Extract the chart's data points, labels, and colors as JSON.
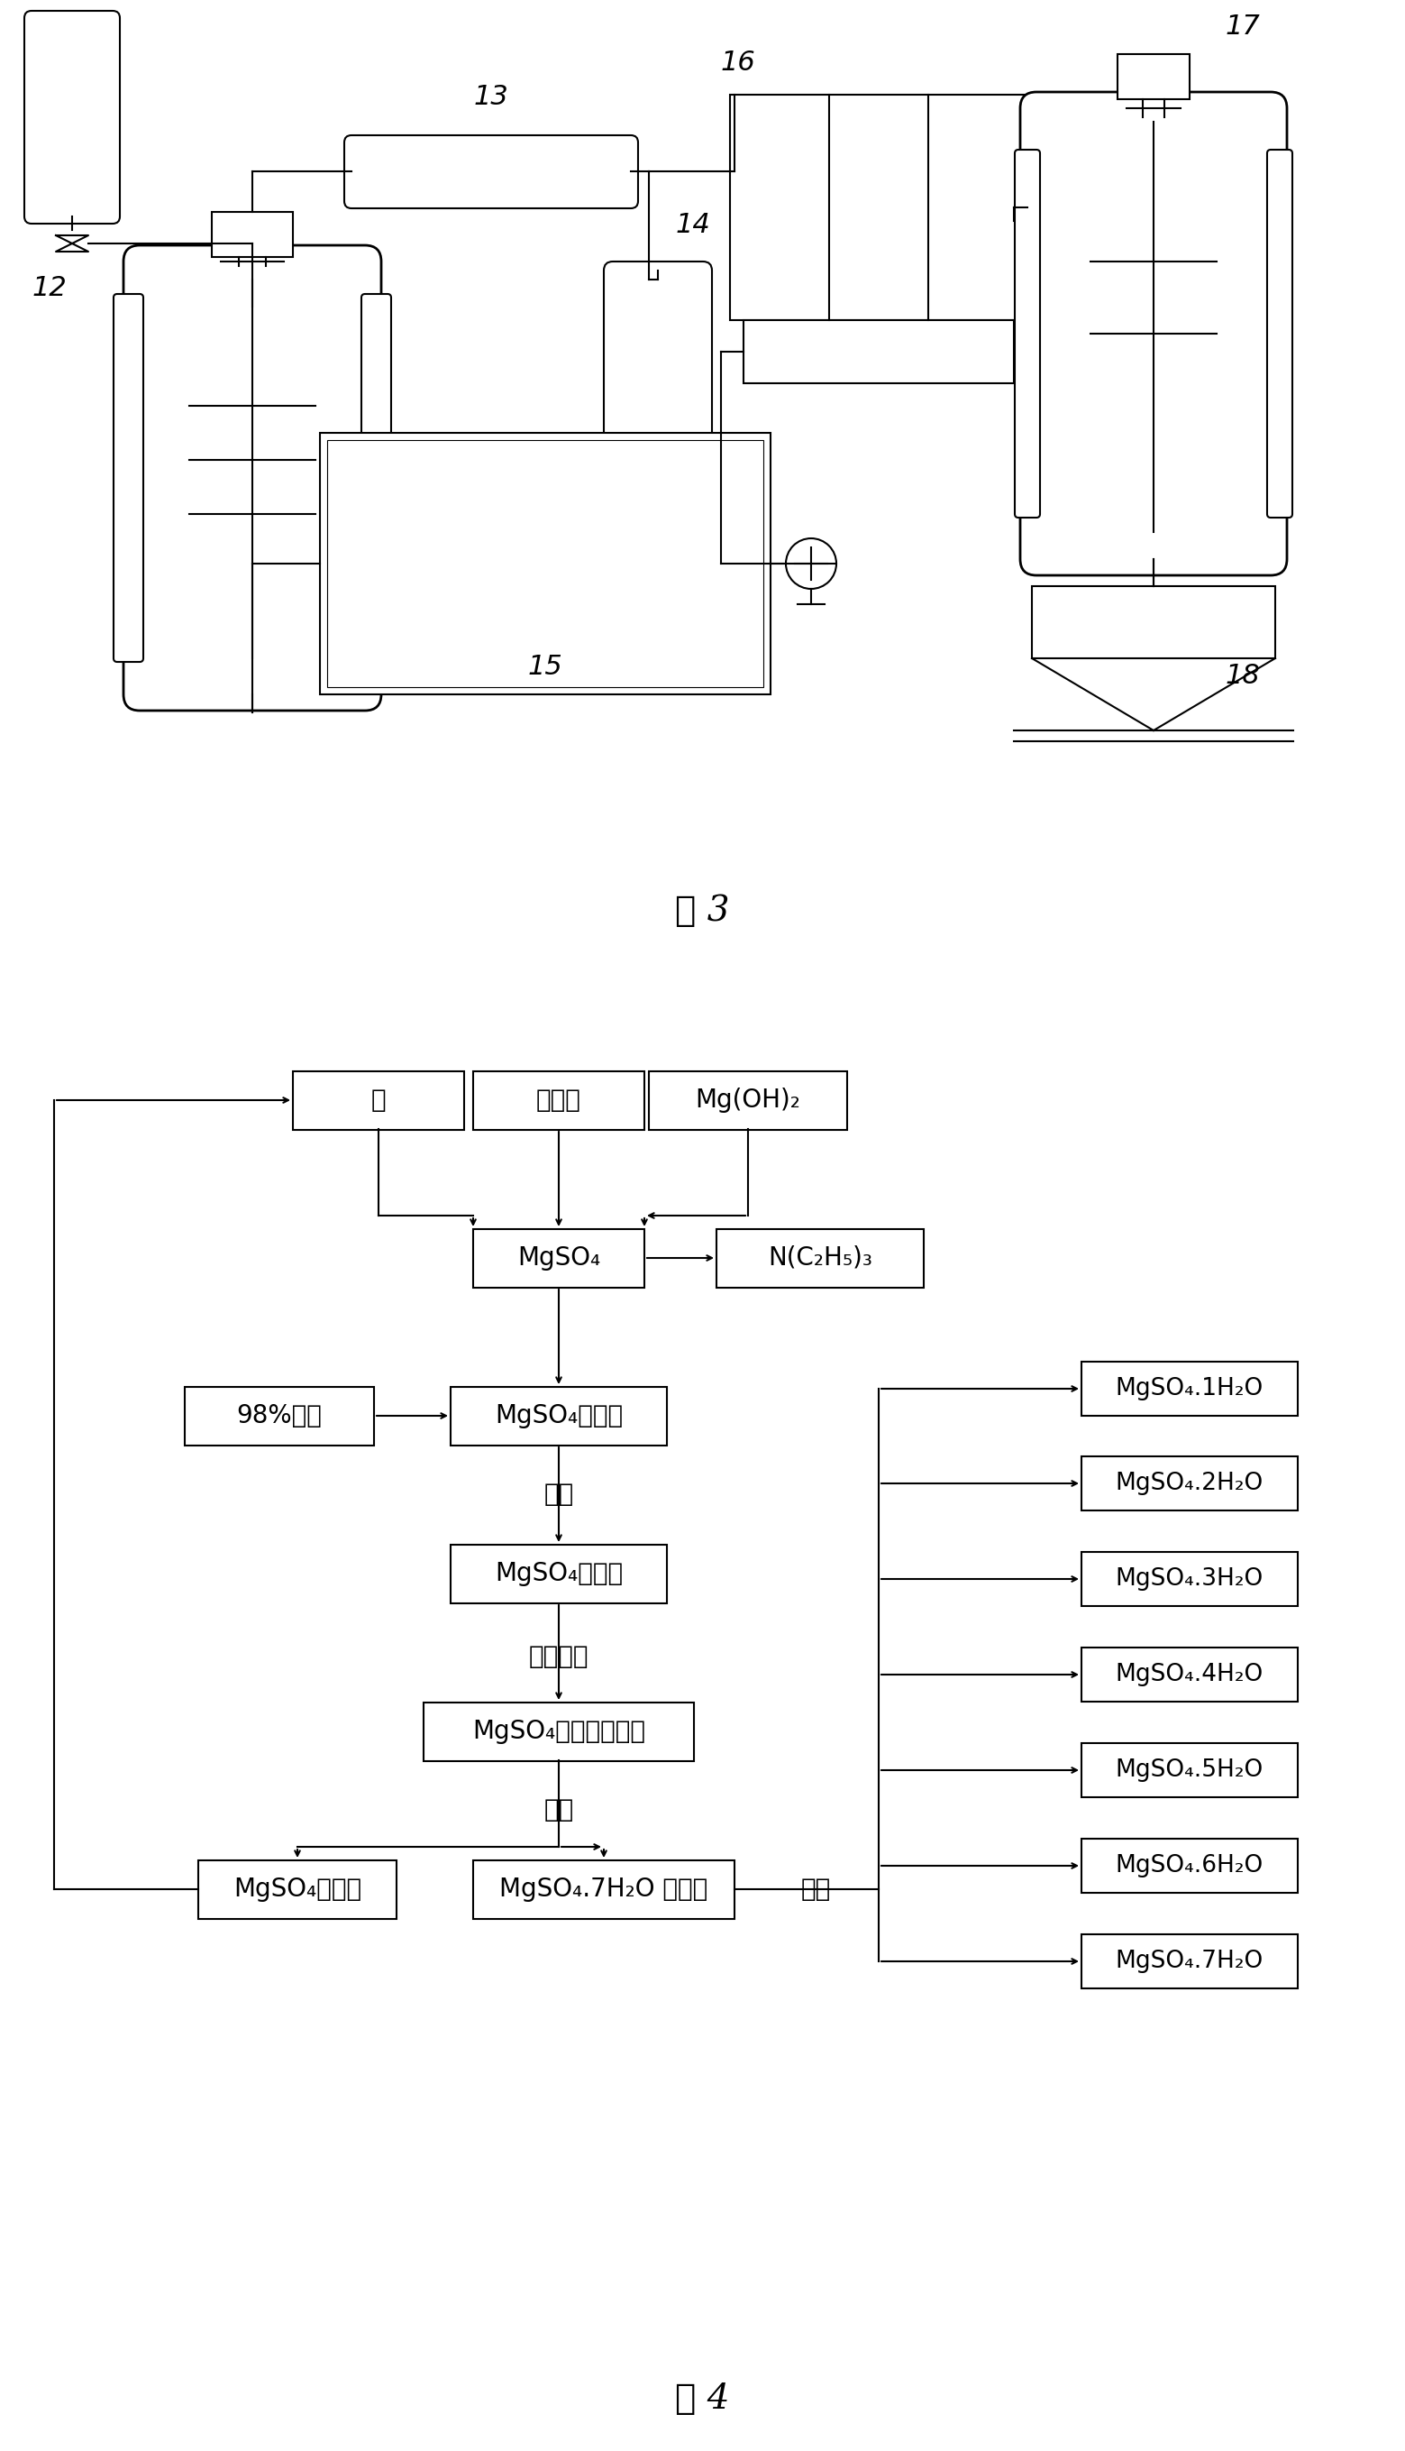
{
  "fig3_label": "图 3",
  "fig4_label": "图 4",
  "bg_color": "#ffffff",
  "line_color": "#000000",
  "prod_labels": [
    "MgSO₄.1H₂O",
    "MgSO₄.2H₂O",
    "MgSO₄.3H₂O",
    "MgSO₄.4H₂O",
    "MgSO₄.5H₂O",
    "MgSO₄.6H₂O",
    "MgSO₄.7H₂O"
  ]
}
